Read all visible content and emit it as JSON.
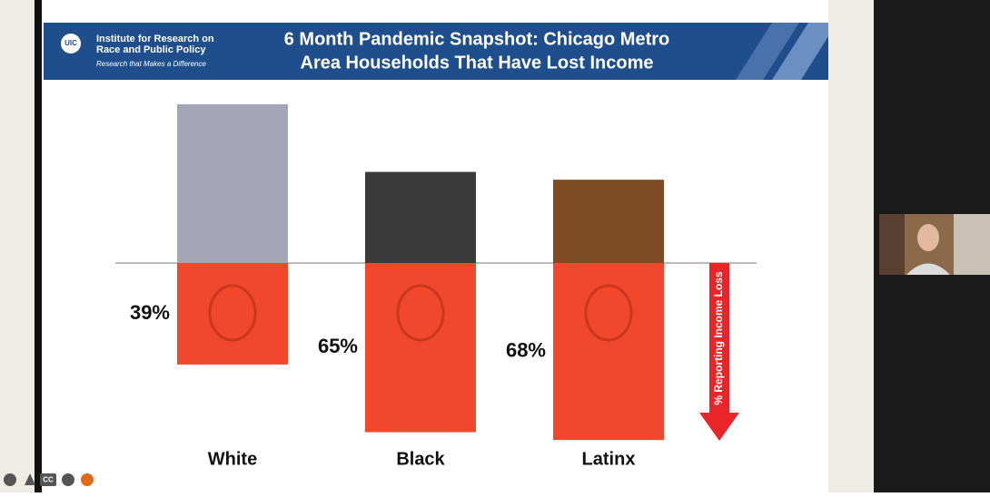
{
  "header": {
    "logo": "UIC",
    "org_lines": [
      "Institute for Research on",
      "Race and Public Policy"
    ],
    "tagline": "Research that Makes a Difference"
  },
  "chart_data": {
    "type": "bar",
    "title": [
      "6 Month Pandemic Snapshot: Chicago Metro",
      "Area Households That Have Lost Income"
    ],
    "categories": [
      "White",
      "Black",
      "Latinx"
    ],
    "values": [
      39,
      65,
      68
    ],
    "value_labels": [
      "39%",
      "65%",
      "68%"
    ],
    "top_colors": [
      "#a4a5b6",
      "#3a3a3a",
      "#7d4c22"
    ],
    "color": "#f1472c",
    "ylim": [
      0,
      100
    ],
    "y_axis_label": "% Reporting Income Loss"
  },
  "toolbar": {
    "captions": "CC"
  }
}
